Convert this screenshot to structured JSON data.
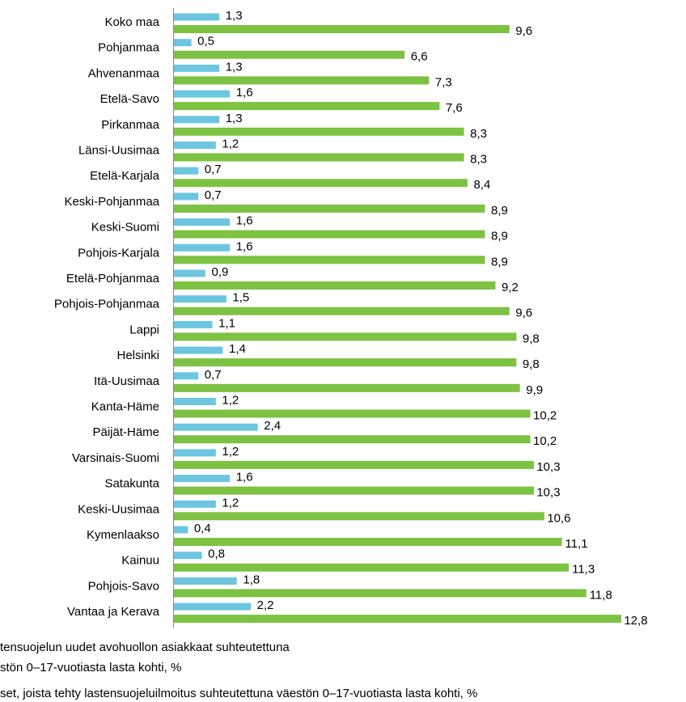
{
  "chart_data": {
    "type": "hbar",
    "categories": [
      "Koko maa",
      "Pohjanmaa",
      "Ahvenanmaa",
      "Etelä-Savo",
      "Pirkanmaa",
      "Länsi-Uusimaa",
      "Etelä-Karjala",
      "Keski-Pohjanmaa",
      "Keski-Suomi",
      "Pohjois-Karjala",
      "Etelä-Pohjanmaa",
      "Pohjois-Pohjanmaa",
      "Lappi",
      "Helsinki",
      "Itä-Uusimaa",
      "Kanta-Häme",
      "Päijät-Häme",
      "Varsinais-Suomi",
      "Satakunta",
      "Keski-Uusimaa",
      "Kymenlaakso",
      "Kainuu",
      "Pohjois-Savo",
      "Vantaa ja Kerava"
    ],
    "series": [
      {
        "name": [
          "tensuojelun  uudet  avohuollon asiakkaat suhteutettuna",
          "stön  0–17-vuotiasta lasta kohti, %"
        ],
        "color": "#6cc6e0",
        "values": [
          1.3,
          0.5,
          1.3,
          1.6,
          1.3,
          1.2,
          0.7,
          0.7,
          1.6,
          1.6,
          0.9,
          1.5,
          1.1,
          1.4,
          0.7,
          1.2,
          2.4,
          1.2,
          1.6,
          1.2,
          0.4,
          0.8,
          1.8,
          2.2
        ],
        "value_labels": [
          "1,3",
          "0,5",
          "1,3",
          "1,6",
          "1,3",
          "1,2",
          "0,7",
          "0,7",
          "1,6",
          "1,6",
          "0,9",
          "1,5",
          "1,1",
          "1,4",
          "0,7",
          "1,2",
          "2,4",
          "1,2",
          "1,6",
          "1,2",
          "0,4",
          "0,8",
          "1,8",
          "2,2"
        ]
      },
      {
        "name": [
          "set,  joista tehty lastensuojeluilmoitus suhteutettuna väestön 0–17-vuotiasta lasta kohti, %"
        ],
        "color": "#7dc242",
        "values": [
          9.6,
          6.6,
          7.3,
          7.6,
          8.3,
          8.3,
          8.4,
          8.9,
          8.9,
          8.9,
          9.2,
          9.6,
          9.8,
          9.8,
          9.9,
          10.2,
          10.2,
          10.3,
          10.3,
          10.6,
          11.1,
          11.3,
          11.8,
          12.8
        ],
        "value_labels": [
          "9,6",
          "6,6",
          "7,3",
          "7,6",
          "8,3",
          "8,3",
          "8,4",
          "8,9",
          "8,9",
          "8,9",
          "9,2",
          "9,6",
          "9,8",
          "9,8",
          "9,9",
          "10,2",
          "10,2",
          "10,3",
          "10,3",
          "10,6",
          "11,1",
          "11,3",
          "11,8",
          "12,8"
        ]
      }
    ]
  }
}
